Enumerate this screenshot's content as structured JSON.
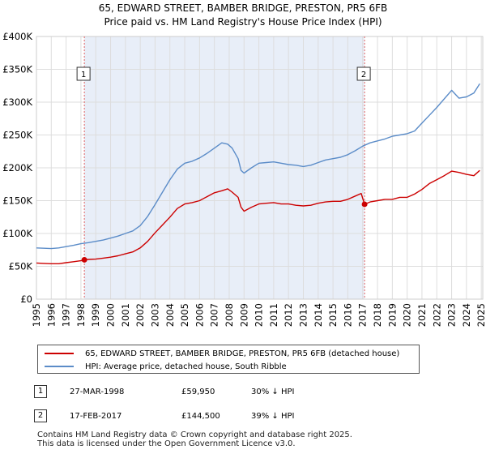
{
  "chart_data": {
    "type": "line",
    "title": "65, EDWARD STREET, BAMBER BRIDGE, PRESTON, PR5 6FB",
    "subtitle": "Price paid vs. HM Land Registry's House Price Index (HPI)",
    "xlim": [
      1995,
      2025.1
    ],
    "ylim": [
      0,
      400000
    ],
    "x_ticks": [
      "1995",
      "1996",
      "1997",
      "1998",
      "1999",
      "2000",
      "2001",
      "2002",
      "2003",
      "2004",
      "2005",
      "2006",
      "2007",
      "2008",
      "2009",
      "2010",
      "2011",
      "2012",
      "2013",
      "2014",
      "2015",
      "2016",
      "2017",
      "2018",
      "2019",
      "2020",
      "2021",
      "2022",
      "2023",
      "2024",
      "2025"
    ],
    "y_ticks": [
      {
        "value": 0,
        "label": "£0"
      },
      {
        "value": 50000,
        "label": "£50K"
      },
      {
        "value": 100000,
        "label": "£100K"
      },
      {
        "value": 150000,
        "label": "£150K"
      },
      {
        "value": 200000,
        "label": "£200K"
      },
      {
        "value": 250000,
        "label": "£250K"
      },
      {
        "value": 300000,
        "label": "£300K"
      },
      {
        "value": 350000,
        "label": "£350K"
      },
      {
        "value": 400000,
        "label": "£400K"
      }
    ],
    "shaded_region": [
      1998.23,
      2017.13
    ],
    "series": [
      {
        "name": "65, EDWARD STREET, BAMBER BRIDGE, PRESTON, PR5 6FB (detached house)",
        "color": "#cc0000",
        "x": [
          1995,
          1995.5,
          1996,
          1996.5,
          1997,
          1997.5,
          1998,
          1998.23,
          1998.5,
          1999,
          1999.5,
          2000,
          2000.5,
          2001,
          2001.5,
          2002,
          2002.5,
          2003,
          2003.5,
          2004,
          2004.5,
          2005,
          2005.5,
          2006,
          2006.5,
          2007,
          2007.5,
          2007.9,
          2008.2,
          2008.6,
          2008.8,
          2009,
          2009.5,
          2010,
          2010.5,
          2011,
          2011.5,
          2012,
          2012.5,
          2013,
          2013.5,
          2014,
          2014.5,
          2015,
          2015.5,
          2016,
          2016.5,
          2016.9,
          2017.13,
          2017.5,
          2018,
          2018.5,
          2019,
          2019.5,
          2020,
          2020.5,
          2021,
          2021.5,
          2022,
          2022.5,
          2023,
          2023.5,
          2024,
          2024.5,
          2024.9
        ],
        "values": [
          55000,
          54500,
          54000,
          54000,
          55500,
          57000,
          58500,
          59950,
          60500,
          61000,
          62500,
          64000,
          66000,
          69000,
          72000,
          78000,
          88000,
          101000,
          113000,
          125000,
          138000,
          145000,
          147000,
          150000,
          156000,
          162000,
          165000,
          168000,
          163000,
          155000,
          140000,
          134000,
          140000,
          145000,
          146000,
          147000,
          145000,
          145000,
          143000,
          142000,
          143000,
          146000,
          148000,
          149000,
          149000,
          152000,
          157000,
          161000,
          144500,
          148000,
          150000,
          152000,
          152000,
          155000,
          155000,
          160000,
          167000,
          176000,
          182000,
          188000,
          195000,
          193000,
          190000,
          188000,
          196000
        ]
      },
      {
        "name": "HPI: Average price, detached house, South Ribble",
        "color": "#5b8cc8",
        "x": [
          1995,
          1995.5,
          1996,
          1996.5,
          1997,
          1997.5,
          1998,
          1998.5,
          1999,
          1999.5,
          2000,
          2000.5,
          2001,
          2001.5,
          2002,
          2002.5,
          2003,
          2003.5,
          2004,
          2004.5,
          2005,
          2005.5,
          2006,
          2006.5,
          2007,
          2007.5,
          2007.9,
          2008.2,
          2008.6,
          2008.8,
          2009,
          2009.5,
          2010,
          2010.5,
          2011,
          2011.5,
          2012,
          2012.5,
          2013,
          2013.5,
          2014,
          2014.5,
          2015,
          2015.5,
          2016,
          2016.5,
          2017,
          2017.5,
          2018,
          2018.5,
          2019,
          2019.5,
          2020,
          2020.5,
          2021,
          2021.5,
          2022,
          2022.5,
          2023,
          2023.5,
          2024,
          2024.5,
          2024.9
        ],
        "values": [
          78000,
          77500,
          77000,
          78000,
          80000,
          82000,
          84500,
          86000,
          88000,
          90000,
          93000,
          96000,
          100000,
          104000,
          112000,
          126000,
          144000,
          163000,
          182000,
          198000,
          207000,
          210000,
          215000,
          222000,
          230000,
          238000,
          236000,
          230000,
          214000,
          196000,
          192000,
          200000,
          207000,
          208000,
          209000,
          207000,
          205000,
          204000,
          202000,
          204000,
          208000,
          212000,
          214000,
          216000,
          220000,
          226000,
          233000,
          238000,
          241000,
          244000,
          248000,
          250000,
          252000,
          256000,
          268000,
          280000,
          292000,
          305000,
          318000,
          306000,
          308000,
          314000,
          328000
        ]
      }
    ],
    "sale_markers": [
      {
        "label": "1",
        "x": 1998.23,
        "value": 59950
      },
      {
        "label": "2",
        "x": 2017.13,
        "value": 144500
      }
    ]
  },
  "legend": {
    "property_label": "65, EDWARD STREET, BAMBER BRIDGE, PRESTON, PR5 6FB (detached house)",
    "hpi_label": "HPI: Average price, detached house, South Ribble"
  },
  "sales": [
    {
      "marker": "1",
      "date": "27-MAR-1998",
      "price": "£59,950",
      "hpi_diff": "30% ↓ HPI"
    },
    {
      "marker": "2",
      "date": "17-FEB-2017",
      "price": "£144,500",
      "hpi_diff": "39% ↓ HPI"
    }
  ],
  "footer": {
    "line1": "Contains HM Land Registry data © Crown copyright and database right 2025.",
    "line2": "This data is licensed under the Open Government Licence v3.0."
  },
  "colors": {
    "property": "#cc0000",
    "hpi": "#5b8cc8",
    "shade": "#e8eef8",
    "grid": "#dddddd"
  }
}
